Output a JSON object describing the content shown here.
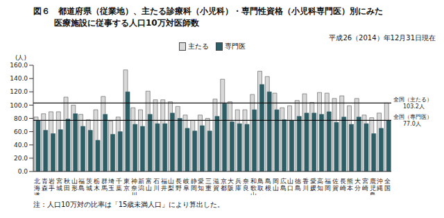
{
  "chart_data": {
    "type": "bar",
    "title": [
      "図６　都道府県（従業地）、主たる診療科（小児科）・専門性資格（小児科専門医）別にみた",
      "医療施設に従事する人口10万対医師数"
    ],
    "subtitle": "平成26（2014）年12月31日現在",
    "y_label": "(人)",
    "annotations": [
      "注：人口10万対の比率は「15歳未満人口」により算出した。"
    ],
    "categories": [
      "北海道",
      "青森",
      "岩手",
      "宮城",
      "秋田",
      "山形",
      "福島",
      "茨城",
      "栃木",
      "群馬",
      "埼玉",
      "千葉",
      "東京",
      "神奈川",
      "新潟",
      "富山",
      "石川",
      "福井",
      "山梨",
      "長野",
      "岐阜",
      "静岡",
      "愛知",
      "三重",
      "滋賀",
      "京都",
      "大阪",
      "兵庫",
      "奈良",
      "和歌山",
      "鳥取",
      "島根",
      "岡山",
      "広島",
      "山口",
      "徳島",
      "香川",
      "愛媛",
      "高知",
      "福岡",
      "佐賀",
      "長崎",
      "熊本",
      "大分",
      "宮崎",
      "鹿児島",
      "沖縄",
      "全国"
    ],
    "series": [
      {
        "name": "主たる",
        "color": "#d9d9d9",
        "values": [
          82,
          87,
          90,
          90,
          112,
          100,
          86,
          78,
          93,
          113,
          76,
          82,
          153,
          96,
          93,
          121,
          108,
          108,
          105,
          98,
          85,
          77,
          85,
          80,
          109,
          139,
          105,
          93,
          93,
          116,
          151,
          143,
          118,
          96,
          99,
          107,
          117,
          104,
          119,
          118,
          110,
          114,
          99,
          110,
          85,
          81,
          88,
          103.2
        ]
      },
      {
        "name": "専門医",
        "color": "#2e5e66",
        "values": [
          77,
          62,
          57,
          63,
          79,
          87,
          68,
          62,
          47,
          86,
          56,
          60,
          120,
          71,
          68,
          86,
          72,
          72,
          88,
          80,
          65,
          61,
          69,
          61,
          83,
          102,
          75,
          72,
          71,
          93,
          131,
          120,
          93,
          78,
          77,
          83,
          88,
          88,
          86,
          90,
          74,
          82,
          71,
          82,
          72,
          57,
          65,
          77.0
        ]
      }
    ],
    "reference_lines": [
      {
        "value": 103.2,
        "label": "全国（主たる）",
        "value_label": "103.2人"
      },
      {
        "value": 77.0,
        "label": "全国（専門医）",
        "value_label": "77.0人"
      }
    ],
    "ylim": [
      0,
      160
    ],
    "yticks": [
      {
        "value": 0,
        "label": "0.0"
      },
      {
        "value": 20,
        "label": "20.0"
      },
      {
        "value": 40,
        "label": "40.0"
      },
      {
        "value": 60,
        "label": "60.0"
      },
      {
        "value": 80,
        "label": "80.0"
      },
      {
        "value": 100,
        "label": "100.0"
      },
      {
        "value": 120,
        "label": "120.0"
      },
      {
        "value": 140,
        "label": "140.0"
      },
      {
        "value": 160,
        "label": "160.0"
      }
    ],
    "grid": false
  }
}
